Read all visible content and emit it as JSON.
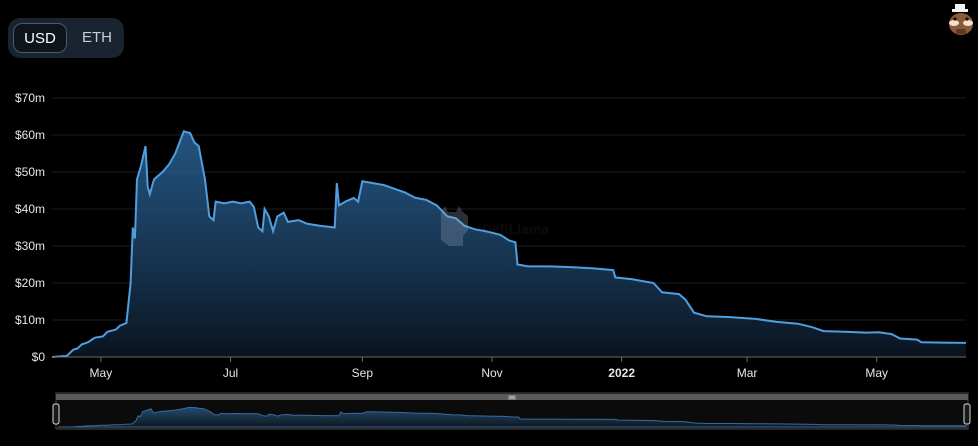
{
  "currency_toggle": {
    "options": [
      "USD",
      "ETH"
    ],
    "selected": "USD"
  },
  "watermark": "DefiLlama",
  "colors": {
    "line": "#4f9fe0",
    "background": "#000000",
    "grid": "#1c1c1c",
    "toggle_bg": "#1a2430"
  },
  "icons": {
    "avatar": "llama-avatar-icon",
    "zoom_handle": "drag-handle-icon"
  },
  "chart_data": {
    "type": "area",
    "title": "",
    "xlabel": "",
    "ylabel": "",
    "y_unit": "USD",
    "ylim": [
      0,
      70
    ],
    "y_ticks": [
      0,
      10,
      20,
      30,
      40,
      50,
      60,
      70
    ],
    "y_tick_labels": [
      "$0",
      "$10m",
      "$20m",
      "$30m",
      "$40m",
      "$50m",
      "$60m",
      "$70m"
    ],
    "x_tick_labels": [
      "May",
      "Jul",
      "Sep",
      "Nov",
      "2022",
      "Mar",
      "May"
    ],
    "x_tick_dates": [
      "2021-05-01",
      "2021-07-01",
      "2021-09-01",
      "2021-11-01",
      "2022-01-01",
      "2022-03-01",
      "2022-05-01"
    ],
    "xlim": [
      "2021-04-08",
      "2022-06-12"
    ],
    "grid": true,
    "series": [
      {
        "values_unit": "USD millions",
        "points": [
          [
            "2021-04-08",
            0
          ],
          [
            "2021-04-15",
            0.3
          ],
          [
            "2021-04-18",
            2
          ],
          [
            "2021-04-20",
            2.3
          ],
          [
            "2021-04-22",
            3.4
          ],
          [
            "2021-04-25",
            4
          ],
          [
            "2021-04-28",
            5.2
          ],
          [
            "2021-05-02",
            5.6
          ],
          [
            "2021-05-04",
            6.8
          ],
          [
            "2021-05-08",
            7.4
          ],
          [
            "2021-05-10",
            8.5
          ],
          [
            "2021-05-13",
            9.2
          ],
          [
            "2021-05-15",
            20
          ],
          [
            "2021-05-16",
            35
          ],
          [
            "2021-05-17",
            32
          ],
          [
            "2021-05-18",
            48
          ],
          [
            "2021-05-20",
            52
          ],
          [
            "2021-05-22",
            57
          ],
          [
            "2021-05-23",
            46
          ],
          [
            "2021-05-24",
            44
          ],
          [
            "2021-05-26",
            48
          ],
          [
            "2021-05-30",
            50
          ],
          [
            "2021-06-02",
            52
          ],
          [
            "2021-06-05",
            55
          ],
          [
            "2021-06-07",
            58
          ],
          [
            "2021-06-09",
            61
          ],
          [
            "2021-06-12",
            60.5
          ],
          [
            "2021-06-14",
            58
          ],
          [
            "2021-06-16",
            57
          ],
          [
            "2021-06-19",
            48
          ],
          [
            "2021-06-21",
            38
          ],
          [
            "2021-06-23",
            37
          ],
          [
            "2021-06-24",
            42
          ],
          [
            "2021-06-28",
            41.5
          ],
          [
            "2021-07-02",
            42
          ],
          [
            "2021-07-06",
            41.5
          ],
          [
            "2021-07-10",
            42
          ],
          [
            "2021-07-12",
            40.5
          ],
          [
            "2021-07-14",
            35
          ],
          [
            "2021-07-16",
            34
          ],
          [
            "2021-07-17",
            40
          ],
          [
            "2021-07-19",
            38
          ],
          [
            "2021-07-21",
            34
          ],
          [
            "2021-07-23",
            38
          ],
          [
            "2021-07-26",
            39
          ],
          [
            "2021-07-28",
            36.5
          ],
          [
            "2021-08-02",
            37
          ],
          [
            "2021-08-06",
            36
          ],
          [
            "2021-08-12",
            35.5
          ],
          [
            "2021-08-19",
            35
          ],
          [
            "2021-08-20",
            47
          ],
          [
            "2021-08-21",
            41
          ],
          [
            "2021-08-24",
            42
          ],
          [
            "2021-08-28",
            43
          ],
          [
            "2021-08-30",
            42
          ],
          [
            "2021-09-01",
            47.5
          ],
          [
            "2021-09-06",
            47
          ],
          [
            "2021-09-11",
            46.5
          ],
          [
            "2021-09-16",
            45.5
          ],
          [
            "2021-09-21",
            44.5
          ],
          [
            "2021-09-26",
            43
          ],
          [
            "2021-10-01",
            42.5
          ],
          [
            "2021-10-06",
            41
          ],
          [
            "2021-10-11",
            38
          ],
          [
            "2021-10-15",
            37.5
          ],
          [
            "2021-10-19",
            35.5
          ],
          [
            "2021-10-24",
            34.5
          ],
          [
            "2021-10-29",
            34
          ],
          [
            "2021-11-05",
            33
          ],
          [
            "2021-11-09",
            31.5
          ],
          [
            "2021-11-12",
            31
          ],
          [
            "2021-11-13",
            25
          ],
          [
            "2021-11-18",
            24.5
          ],
          [
            "2021-11-28",
            24.5
          ],
          [
            "2021-12-08",
            24.3
          ],
          [
            "2021-12-18",
            24
          ],
          [
            "2021-12-28",
            23.5
          ],
          [
            "2021-12-29",
            21.5
          ],
          [
            "2022-01-06",
            21
          ],
          [
            "2022-01-16",
            20
          ],
          [
            "2022-01-20",
            17.5
          ],
          [
            "2022-01-28",
            17
          ],
          [
            "2022-01-31",
            15.5
          ],
          [
            "2022-02-04",
            12
          ],
          [
            "2022-02-10",
            11
          ],
          [
            "2022-02-20",
            10.8
          ],
          [
            "2022-03-05",
            10.3
          ],
          [
            "2022-03-15",
            9.5
          ],
          [
            "2022-03-25",
            9
          ],
          [
            "2022-04-01",
            8
          ],
          [
            "2022-04-06",
            7
          ],
          [
            "2022-04-16",
            6.8
          ],
          [
            "2022-04-26",
            6.6
          ],
          [
            "2022-05-02",
            6.7
          ],
          [
            "2022-05-08",
            6.2
          ],
          [
            "2022-05-12",
            5
          ],
          [
            "2022-05-20",
            4.7
          ],
          [
            "2022-05-22",
            4
          ],
          [
            "2022-06-01",
            3.9
          ],
          [
            "2022-06-12",
            3.8
          ]
        ]
      }
    ]
  }
}
